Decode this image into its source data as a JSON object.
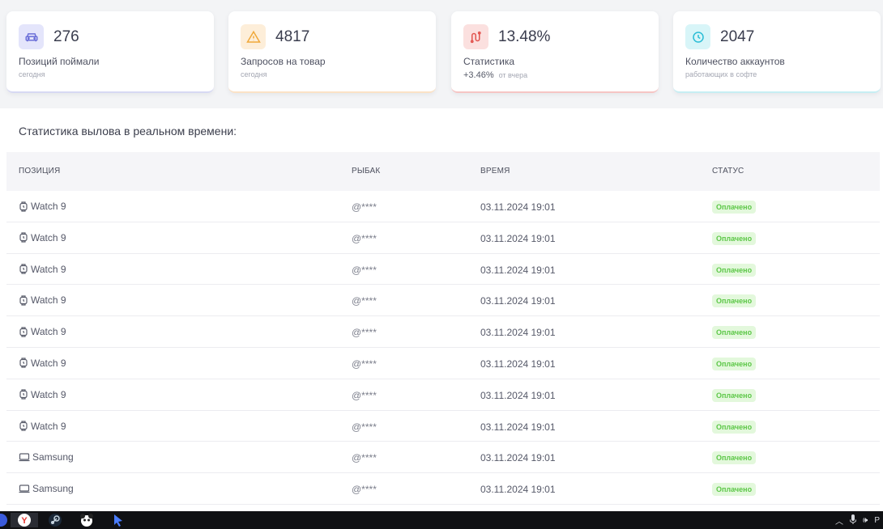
{
  "cards": [
    {
      "icon": "car-icon",
      "value": "276",
      "label": "Позиций поймали",
      "sub": "сегодня",
      "accent": "#6b6fd8"
    },
    {
      "icon": "warning-icon",
      "value": "4817",
      "label": "Запросов на товар",
      "sub": "сегодня",
      "accent": "#f0a83a"
    },
    {
      "icon": "chart-route-icon",
      "value": "13.48%",
      "label": "Статистика",
      "delta": "+3.46%",
      "sub": "от вчера",
      "accent": "#e2544f"
    },
    {
      "icon": "clock-icon",
      "value": "2047",
      "label": "Количество аккаунтов",
      "sub": "работающих в софте",
      "accent": "#2bbdd6"
    }
  ],
  "table": {
    "title": "Статистика вылова в реальном времени:",
    "headers": {
      "position": "ПОЗИЦИЯ",
      "fisher": "РЫБАК",
      "time": "ВРЕМЯ",
      "status": "СТАТУС"
    },
    "rows": [
      {
        "icon": "watch-icon",
        "position": "Watch 9",
        "fisher": "@****",
        "time": "03.11.2024 19:01",
        "status": "Оплачено"
      },
      {
        "icon": "watch-icon",
        "position": "Watch 9",
        "fisher": "@****",
        "time": "03.11.2024 19:01",
        "status": "Оплачено"
      },
      {
        "icon": "watch-icon",
        "position": "Watch 9",
        "fisher": "@****",
        "time": "03.11.2024 19:01",
        "status": "Оплачено"
      },
      {
        "icon": "watch-icon",
        "position": "Watch 9",
        "fisher": "@****",
        "time": "03.11.2024 19:01",
        "status": "Оплачено"
      },
      {
        "icon": "watch-icon",
        "position": "Watch 9",
        "fisher": "@****",
        "time": "03.11.2024 19:01",
        "status": "Оплачено"
      },
      {
        "icon": "watch-icon",
        "position": "Watch 9",
        "fisher": "@****",
        "time": "03.11.2024 19:01",
        "status": "Оплачено"
      },
      {
        "icon": "watch-icon",
        "position": "Watch 9",
        "fisher": "@****",
        "time": "03.11.2024 19:01",
        "status": "Оплачено"
      },
      {
        "icon": "watch-icon",
        "position": "Watch 9",
        "fisher": "@****",
        "time": "03.11.2024 19:01",
        "status": "Оплачено"
      },
      {
        "icon": "laptop-icon",
        "position": "Samsung",
        "fisher": "@****",
        "time": "03.11.2024 19:01",
        "status": "Оплачено"
      },
      {
        "icon": "laptop-icon",
        "position": "Samsung",
        "fisher": "@****",
        "time": "03.11.2024 19:01",
        "status": "Оплачено"
      }
    ]
  },
  "taskbar": {
    "icons": [
      "yandex-browser-icon",
      "steam-icon",
      "panda-icon",
      "cursor-app-icon"
    ],
    "tray": [
      "chevron-up-icon",
      "microphone-icon",
      "speaker-icon"
    ],
    "lang": "Р"
  }
}
